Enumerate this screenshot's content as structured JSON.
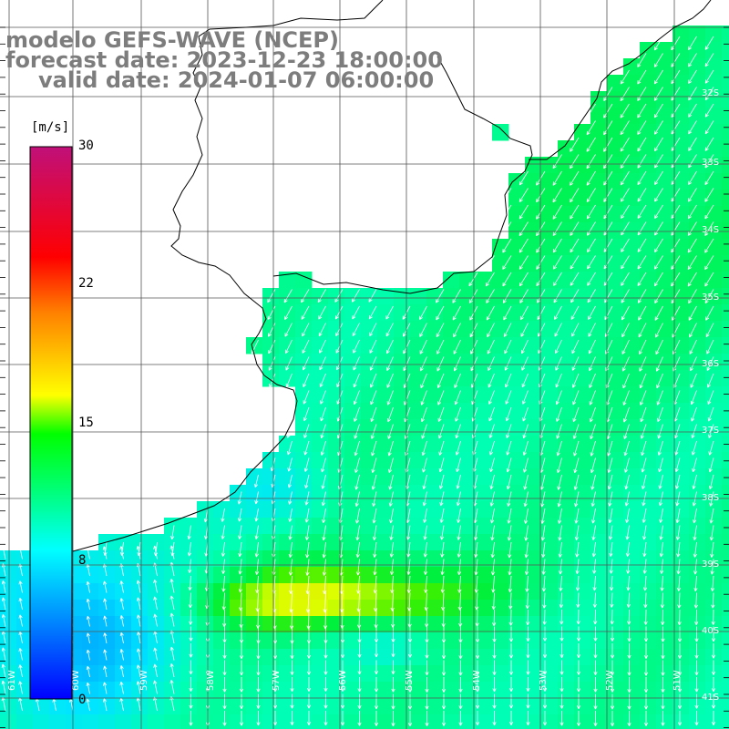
{
  "title": {
    "line1": "modelo GEFS-WAVE (NCEP)",
    "line2": "forecast date: 2023-12-23 18:00:00",
    "line3": "valid date: 2024-01-07 06:00:00"
  },
  "colorbar": {
    "unit": "[m/s]",
    "min": 0,
    "max": 30,
    "labels": [
      "30",
      "22",
      "15",
      "8",
      "0"
    ],
    "label_values": [
      30,
      22,
      15,
      8,
      0
    ]
  },
  "lat_labels": [
    "32S",
    "33S",
    "34S",
    "35S",
    "36S",
    "37S",
    "38S",
    "39S",
    "40S",
    "41S"
  ],
  "lon_labels": [
    "61W",
    "60W",
    "59W",
    "58W",
    "57W",
    "56W",
    "55W",
    "54W",
    "53W",
    "52W",
    "51W"
  ],
  "colors": {
    "land": "#ffffff",
    "coast": "#000000",
    "grid": "#555555",
    "arrow": "#ffffff",
    "title": "#7d7d7d"
  }
}
